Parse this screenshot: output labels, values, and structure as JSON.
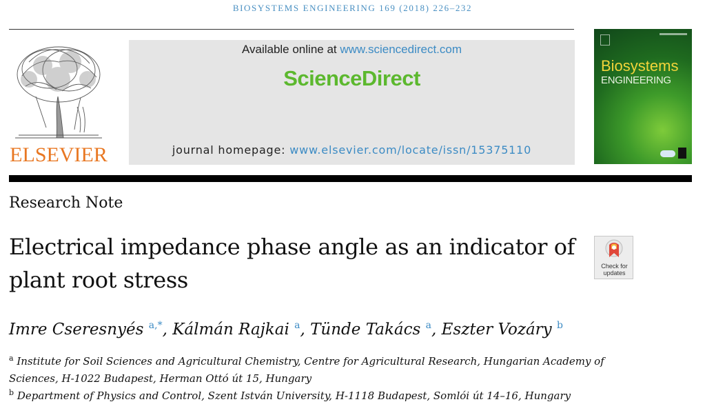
{
  "journal": {
    "running_head": "BIOSYSTEMS ENGINEERING 169 (2018) 226–232",
    "publisher_logo_text": "ELSEVIER",
    "available_prefix": "Available online at ",
    "available_link": "www.sciencedirect.com",
    "platform_brand": "ScienceDirect",
    "homepage_prefix": "journal homepage: ",
    "homepage_link": "www.elsevier.com/locate/issn/15375110",
    "cover_title_line1": "Biosystems",
    "cover_title_line2": "ENGINEERING"
  },
  "colors": {
    "elsevier_orange": "#e87722",
    "sciencedirect_green": "#5cb82e",
    "link_blue": "#3c8bc4",
    "cover_yellow": "#f2d43a"
  },
  "article": {
    "type": "Research Note",
    "title": "Electrical impedance phase angle as an indicator of plant root stress",
    "check_updates_line1": "Check for",
    "check_updates_line2": "updates",
    "authors": [
      {
        "name": "Imre Cseresnyés",
        "sup": "a,*",
        "sep": ", "
      },
      {
        "name": "Kálmán Rajkai",
        "sup": "a",
        "sep": ", "
      },
      {
        "name": "Tünde Takács",
        "sup": "a",
        "sep": ", "
      },
      {
        "name": "Eszter Vozáry",
        "sup": "b",
        "sep": ""
      }
    ],
    "affiliations": [
      {
        "mark": "a",
        "line1": "Institute for Soil Sciences and Agricultural Chemistry, Centre for Agricultural Research, Hungarian Academy of",
        "line2": "Sciences, H-1022 Budapest, Herman Ottó út 15, Hungary"
      },
      {
        "mark": "b",
        "line1": "Department of Physics and Control, Szent István University, H-1118 Budapest, Somlói út 14–16, Hungary"
      }
    ]
  }
}
